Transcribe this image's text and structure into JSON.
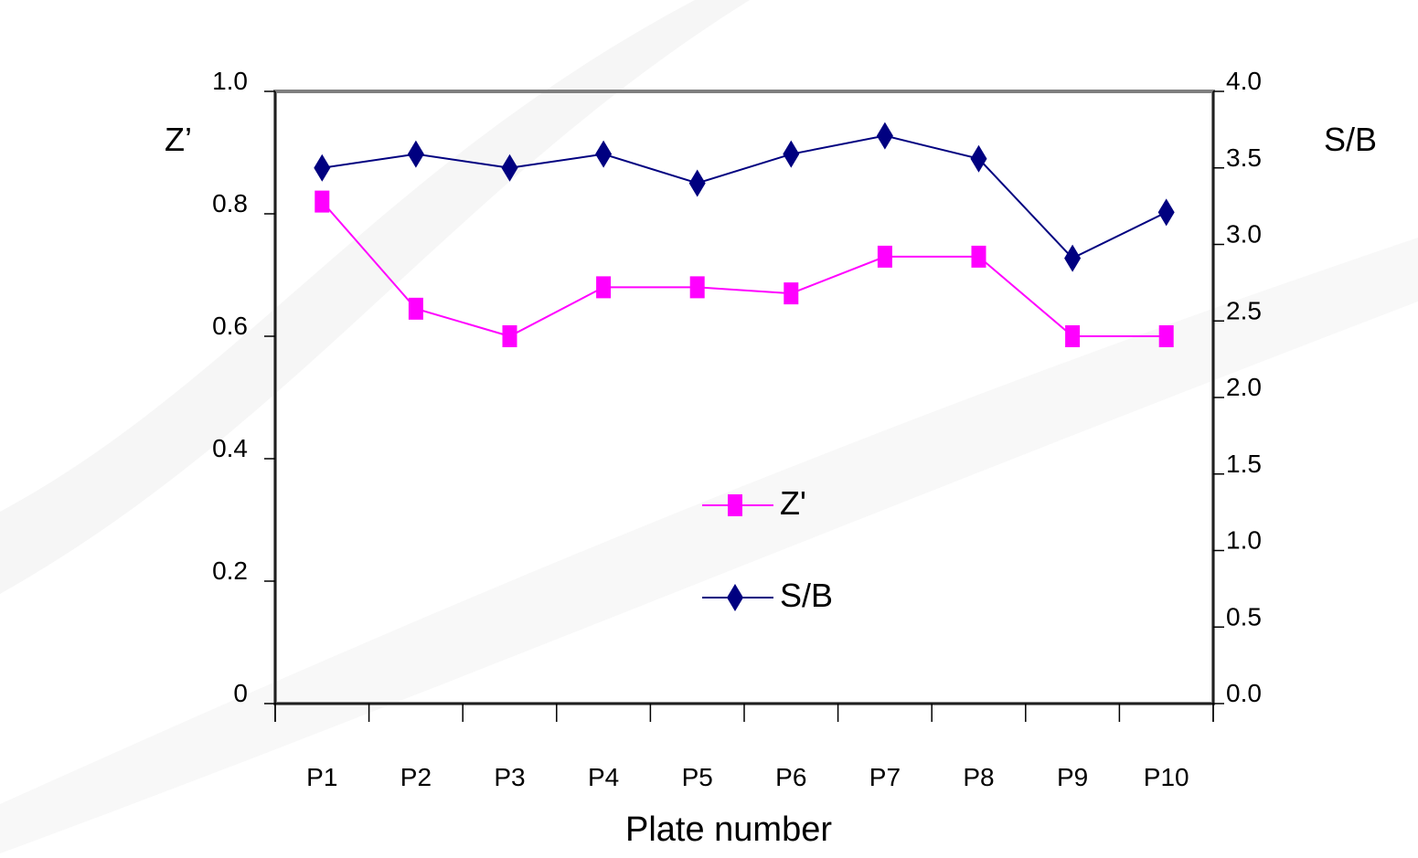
{
  "chart_data": {
    "type": "line",
    "title": "",
    "xlabel": "Plate number",
    "ylabel_left": "Z’",
    "ylabel_right": "S/B",
    "categories": [
      "P1",
      "P2",
      "P3",
      "P4",
      "P5",
      "P6",
      "P7",
      "P8",
      "P9",
      "P10"
    ],
    "y_left": {
      "ylim": [
        0,
        1.0
      ],
      "ticks": [
        "0",
        "0.2",
        "0.4",
        "0.6",
        "0.8",
        "1.0"
      ]
    },
    "y_right": {
      "ylim": [
        0,
        4.0
      ],
      "ticks": [
        "0.0",
        "0.5",
        "1.0",
        "1.5",
        "2.0",
        "2.5",
        "3.0",
        "3.5",
        "4.0"
      ]
    },
    "series": [
      {
        "name": "Z'",
        "axis": "left",
        "marker": "square",
        "color": "#ff00ff",
        "values": [
          0.82,
          0.645,
          0.6,
          0.68,
          0.68,
          0.67,
          0.73,
          0.73,
          0.6,
          0.6
        ]
      },
      {
        "name": "S/B",
        "axis": "right",
        "marker": "diamond",
        "color": "#000080",
        "values": [
          3.5,
          3.59,
          3.5,
          3.59,
          3.4,
          3.59,
          3.71,
          3.56,
          2.91,
          3.21
        ]
      }
    ],
    "grid": false,
    "legend_position": "center"
  }
}
